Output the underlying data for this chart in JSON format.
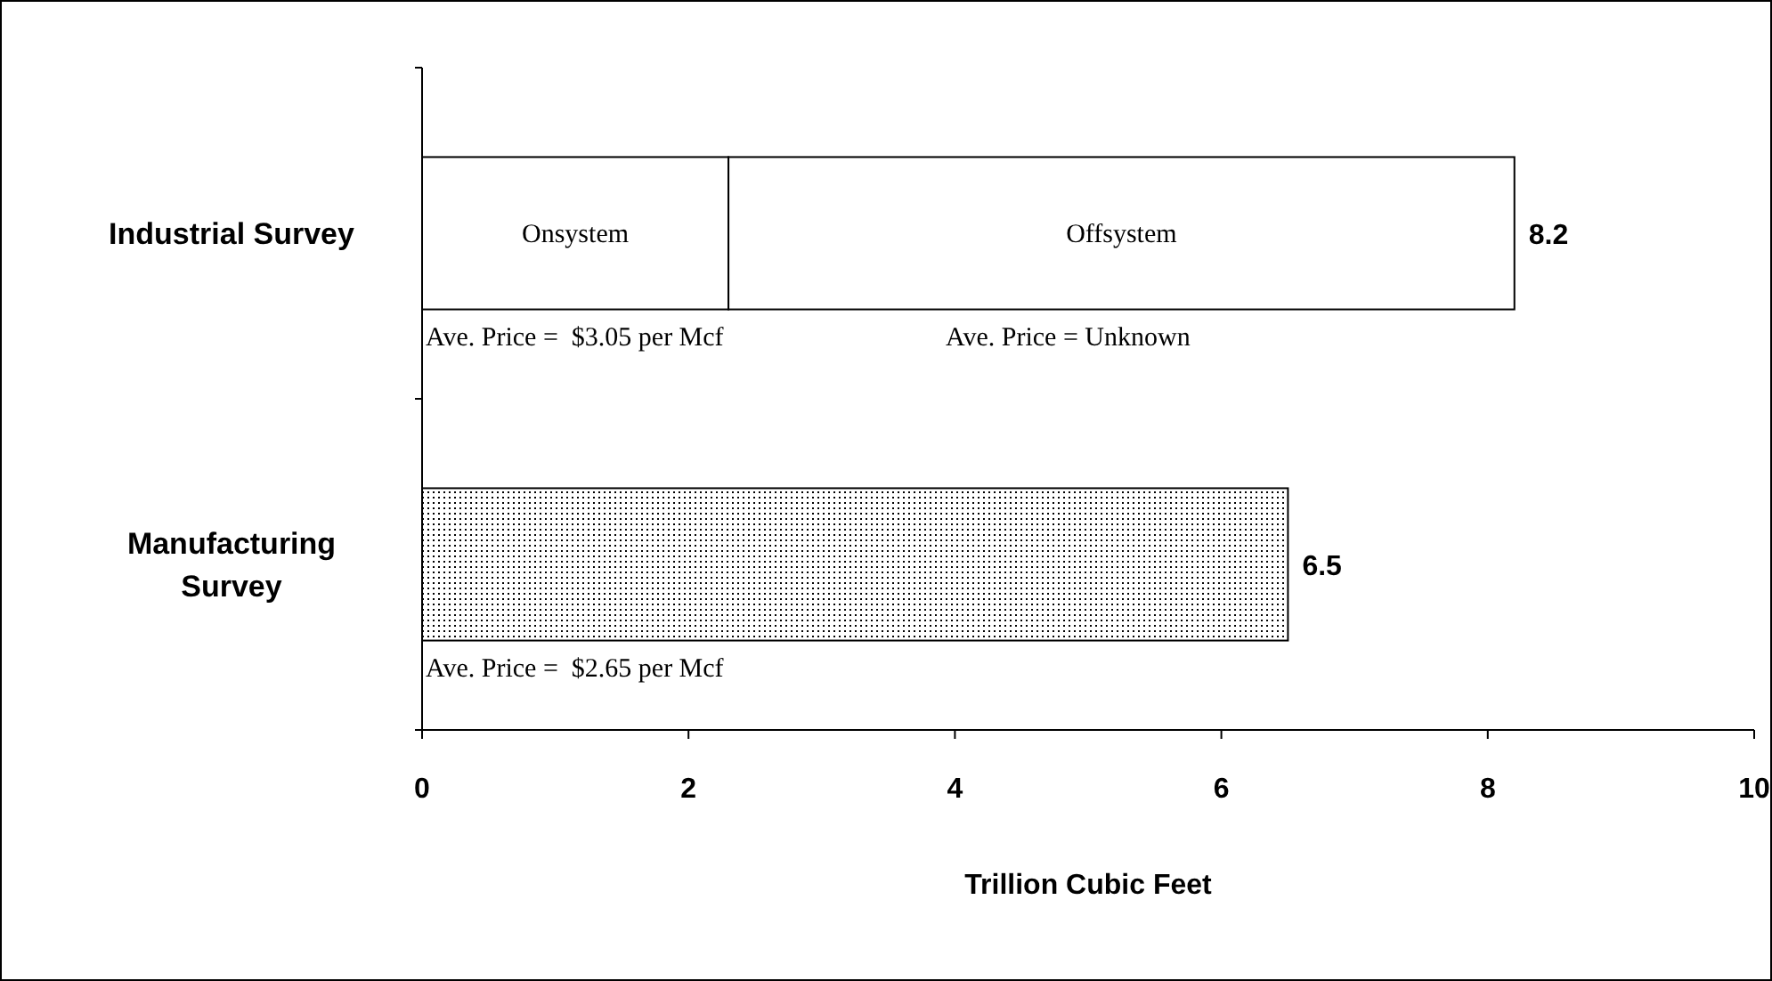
{
  "chart_data": {
    "type": "bar",
    "orientation": "horizontal",
    "stacked": true,
    "categories": [
      "Industrial Survey",
      "Manufacturing Survey"
    ],
    "series": [
      {
        "name": "Onsystem",
        "color": "#ffffff",
        "values": [
          2.3,
          null
        ]
      },
      {
        "name": "Offsystem",
        "color": "#ffffff",
        "values": [
          5.9,
          null
        ]
      },
      {
        "color": "#000000",
        "values": [
          null,
          6.5
        ]
      }
    ],
    "totals": [
      "8.2",
      "6.5"
    ],
    "xlim": [
      0,
      10
    ],
    "xticks": [
      0,
      2,
      4,
      6,
      8,
      10
    ],
    "xlabel": "Trillion Cubic Feet",
    "annotations": [
      "Ave. Price =  $3.05 per Mcf",
      "Ave. Price = Unknown",
      "Ave. Price =  $2.65 per Mcf"
    ]
  }
}
